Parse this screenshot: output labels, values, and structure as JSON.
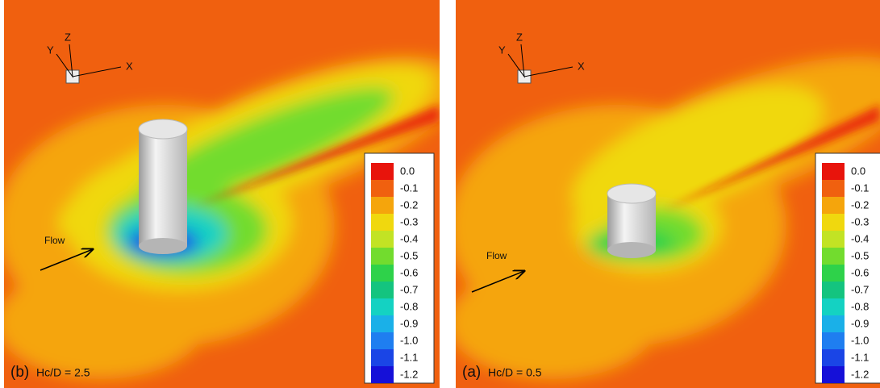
{
  "panels": [
    {
      "tag": "(b)",
      "caption": "Hc/D = 2.5",
      "flow": "Flow",
      "axes": {
        "x": "X",
        "y": "Y",
        "z": "Z"
      }
    },
    {
      "tag": "(a)",
      "caption": "Hc/D = 0.5",
      "flow": "Flow",
      "axes": {
        "x": "X",
        "y": "Y",
        "z": "Z"
      }
    }
  ],
  "colorbar": [
    {
      "label": "0.0",
      "color": "#e8140c"
    },
    {
      "label": "-0.1",
      "color": "#f0600f"
    },
    {
      "label": "-0.2",
      "color": "#f5a50c"
    },
    {
      "label": "-0.3",
      "color": "#f0d80e"
    },
    {
      "label": "-0.4",
      "color": "#c2e324"
    },
    {
      "label": "-0.5",
      "color": "#72dc2e"
    },
    {
      "label": "-0.6",
      "color": "#2ed24a"
    },
    {
      "label": "-0.7",
      "color": "#14c47f"
    },
    {
      "label": "-0.8",
      "color": "#14d2c2"
    },
    {
      "label": "-0.9",
      "color": "#1ab0e8"
    },
    {
      "label": "-1.0",
      "color": "#1f7ef0"
    },
    {
      "label": "-1.1",
      "color": "#1a45e6"
    },
    {
      "label": "-1.2",
      "color": "#1510d8"
    }
  ]
}
